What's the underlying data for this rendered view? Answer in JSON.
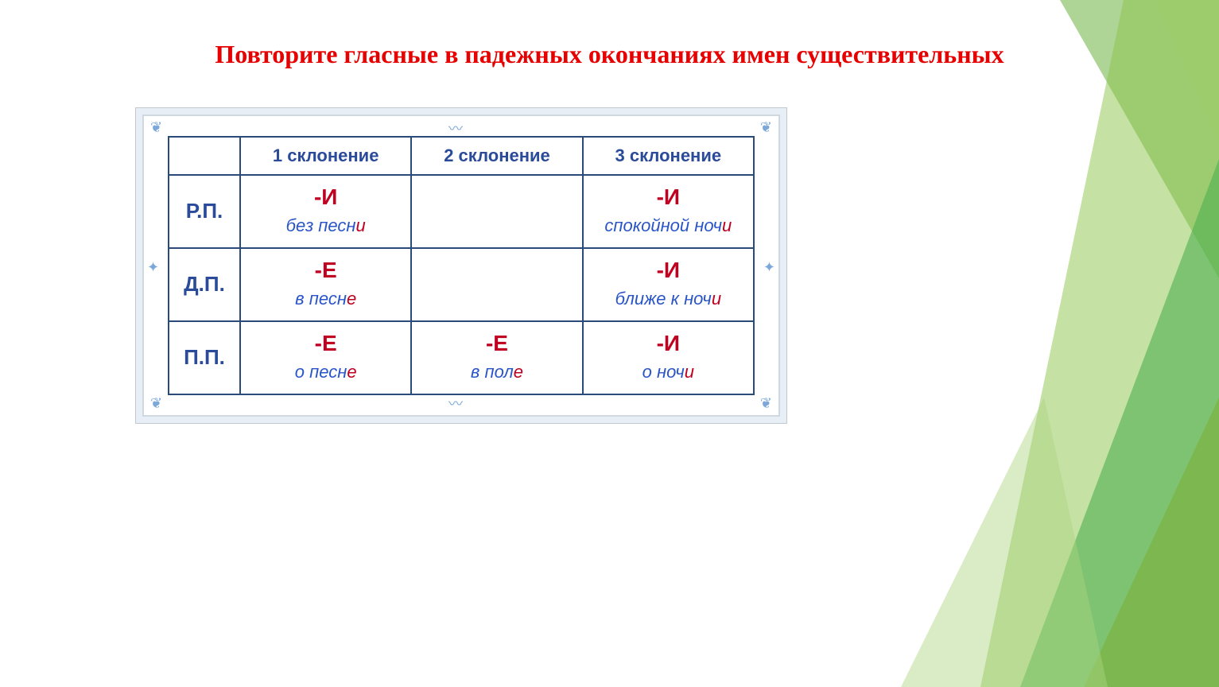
{
  "title": "Повторите гласные в падежных окончаниях имен существительных",
  "colors": {
    "title": "#e60000",
    "table_border": "#2a4a7a",
    "header_text": "#2a4a9a",
    "ending_text": "#c00020",
    "example_text": "#2a55c8",
    "highlight_text": "#c00020",
    "frame_outer_bg": "#e8eef5",
    "ornament": "#7ba8d8"
  },
  "table": {
    "columns": [
      "1 склонение",
      "2 склонение",
      "3 склонение"
    ],
    "rows": [
      {
        "label": "Р.П.",
        "cells": [
          {
            "ending": "-И",
            "example_pre": "без песн",
            "example_hl": "и"
          },
          null,
          {
            "ending": "-И",
            "example_pre": "спокойной ноч",
            "example_hl": "и"
          }
        ]
      },
      {
        "label": "Д.П.",
        "cells": [
          {
            "ending": "-Е",
            "example_pre": "в песн",
            "example_hl": "е"
          },
          null,
          {
            "ending": "-И",
            "example_pre": "ближе к ноч",
            "example_hl": "и"
          }
        ]
      },
      {
        "label": "П.П.",
        "cells": [
          {
            "ending": "-Е",
            "example_pre": "о песн",
            "example_hl": "е"
          },
          {
            "ending": "-Е",
            "example_pre": "в пол",
            "example_hl": "е"
          },
          {
            "ending": "-И",
            "example_pre": "о ноч",
            "example_hl": "и"
          }
        ]
      }
    ]
  }
}
